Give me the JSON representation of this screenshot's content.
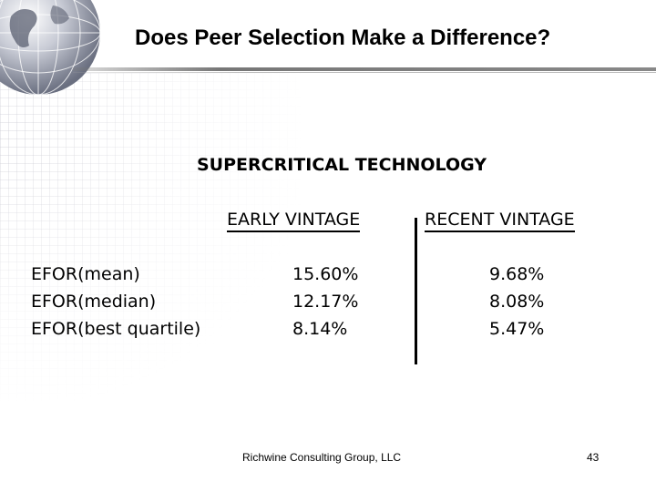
{
  "slide": {
    "title": "Does Peer Selection Make a Difference?",
    "heading": "SUPERCRITICAL TECHNOLOGY",
    "columns": [
      "EARLY VINTAGE",
      "RECENT VINTAGE"
    ],
    "rows": [
      {
        "label": "EFOR(mean)",
        "early": "15.60%",
        "recent": "9.68%"
      },
      {
        "label": "EFOR(median)",
        "early": "12.17%",
        "recent": "8.08%"
      },
      {
        "label": "EFOR(best quartile)",
        "early": "8.14%",
        "recent": "5.47%"
      }
    ],
    "footer": "Richwine Consulting Group, LLC",
    "page_number": "43"
  },
  "theme": {
    "background": "#ffffff",
    "text": "#000000",
    "rule": "#888888"
  },
  "decor": {
    "logo_icon": "globe-icon"
  }
}
